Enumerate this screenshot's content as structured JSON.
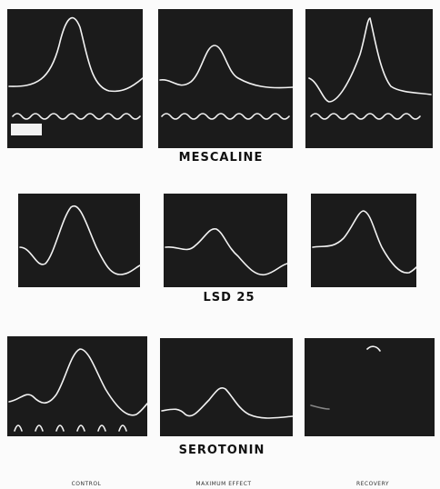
{
  "rows": [
    {
      "label": "MESCALINE"
    },
    {
      "label": "LSD 25"
    },
    {
      "label": "SEROTONIN"
    }
  ],
  "columns": [
    "CONTROL",
    "MAXIMUM EFFECT",
    "RECOVERY"
  ]
}
